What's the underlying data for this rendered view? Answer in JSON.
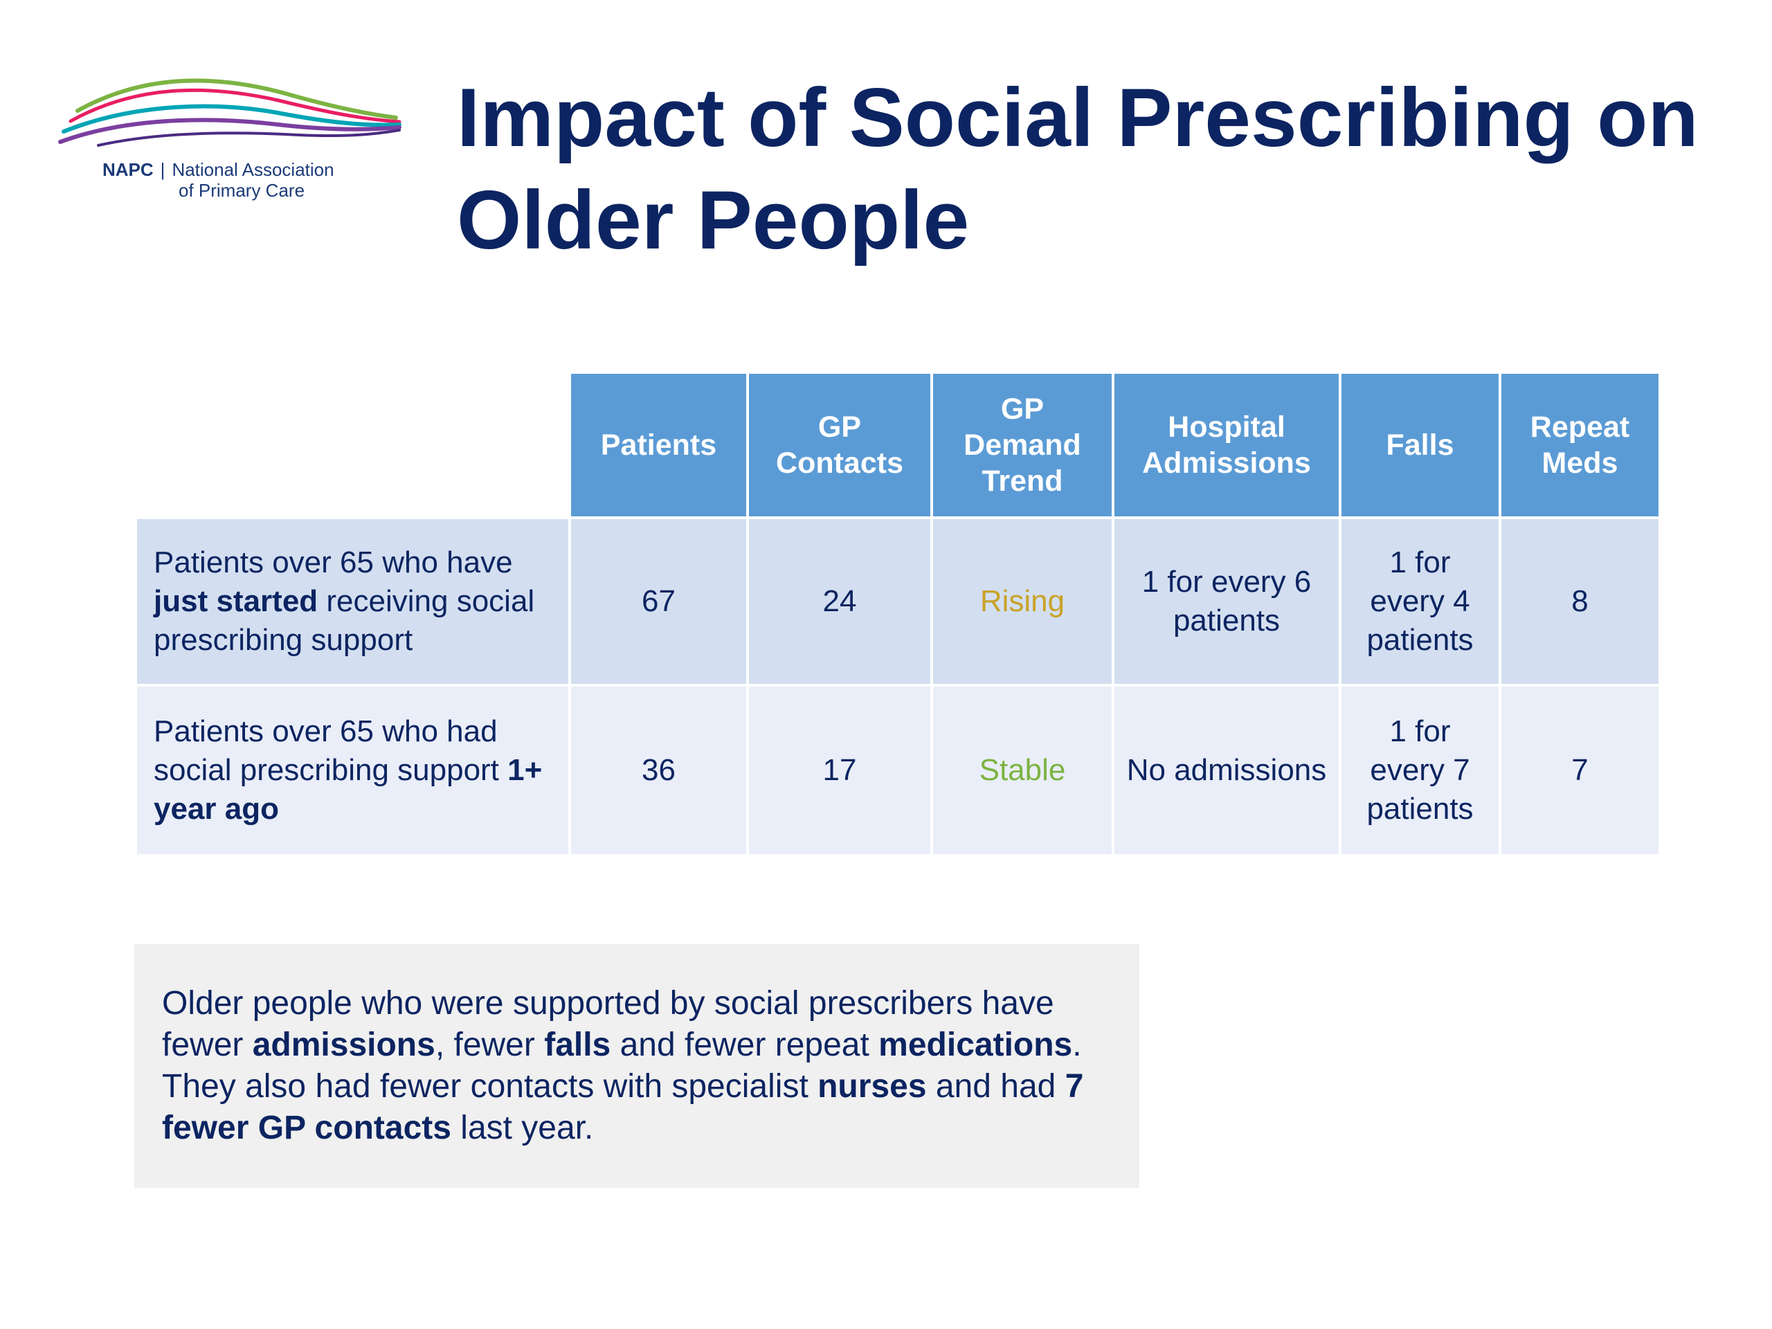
{
  "logo": {
    "abbr": "NAPC",
    "separator": "|",
    "name_line1": "National Association",
    "name_line2": "of Primary Care"
  },
  "title": "Impact of Social Prescribing on Older People",
  "table": {
    "headers": [
      "Patients",
      "GP Contacts",
      "GP Demand Trend",
      "Hospital Admissions",
      "Falls",
      "Repeat Meds"
    ],
    "rows": [
      {
        "label_pre": "Patients over 65 who have ",
        "label_bold": "just started",
        "label_post": " receiving social prescribing support",
        "patients": "67",
        "gp_contacts": "24",
        "gp_demand_trend": "Rising",
        "hospital_admissions": "1 for every 6 patients",
        "falls": "1 for every 4 patients",
        "repeat_meds": "8"
      },
      {
        "label_pre": "Patients over 65 who had social prescribing support ",
        "label_bold": "1+ year ago",
        "label_post": "",
        "patients": "36",
        "gp_contacts": "17",
        "gp_demand_trend": "Stable",
        "hospital_admissions": "No admissions",
        "falls": "1 for every 7 patients",
        "repeat_meds": "7"
      }
    ]
  },
  "summary": {
    "t1": "Older people who were supported by social prescribers have fewer ",
    "b1": "admissions",
    "t2": ", fewer ",
    "b2": "falls",
    "t3": " and fewer repeat ",
    "b3": "medications",
    "t4": ". They also had fewer contacts with specialist ",
    "b4": "nurses",
    "t5": " and had ",
    "b5": "7 fewer GP contacts",
    "t6": " last year."
  },
  "colors": {
    "title": "#0c2461",
    "header_bg": "#5b9bd5",
    "row1_bg": "#d3dff0",
    "row2_bg": "#e9eef8",
    "rising": "#c9a228",
    "stable": "#7cb342",
    "summary_bg": "#f0f0f0"
  }
}
